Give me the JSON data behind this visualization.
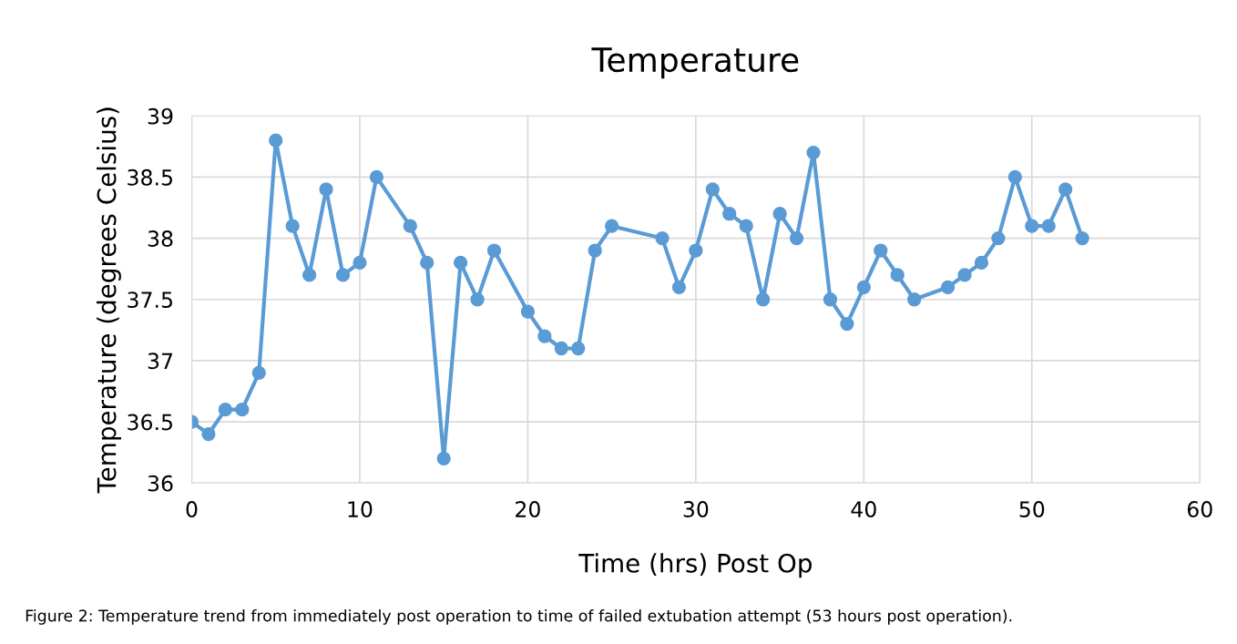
{
  "chart_data": {
    "type": "line",
    "title": "Temperature",
    "xlabel": "Time (hrs) Post Op",
    "ylabel": "Temperature (degrees Celsius)",
    "x": [
      0,
      1,
      2,
      3,
      4,
      5,
      6,
      7,
      8,
      9,
      10,
      11,
      13,
      14,
      15,
      16,
      17,
      18,
      20,
      21,
      22,
      23,
      24,
      25,
      28,
      29,
      30,
      31,
      32,
      33,
      34,
      35,
      36,
      37,
      38,
      39,
      40,
      41,
      42,
      43,
      45,
      46,
      47,
      48,
      49,
      50,
      51,
      52,
      53
    ],
    "series": [
      {
        "color": "#5b9bd5",
        "values": [
          36.5,
          36.4,
          36.6,
          36.6,
          36.9,
          38.8,
          38.1,
          37.7,
          38.4,
          37.7,
          37.8,
          38.5,
          38.1,
          37.8,
          36.2,
          37.8,
          37.5,
          37.9,
          37.4,
          37.2,
          37.1,
          37.1,
          37.9,
          38.1,
          38.0,
          37.6,
          37.9,
          38.4,
          38.2,
          38.1,
          37.5,
          38.2,
          38.0,
          38.7,
          37.5,
          37.3,
          37.6,
          37.9,
          37.7,
          37.5,
          37.6,
          37.7,
          37.8,
          38.0,
          38.5,
          38.1,
          38.1,
          38.4,
          38.0
        ]
      }
    ],
    "xlim": [
      0,
      60
    ],
    "xticks": [
      0,
      10,
      20,
      30,
      40,
      50,
      60
    ],
    "ylim": [
      36,
      39
    ],
    "yticks": [
      36,
      36.5,
      37,
      37.5,
      38,
      38.5,
      39
    ],
    "grid": true,
    "marker": "circle",
    "line_style": "solid",
    "annotations": [
      "Figure 2: Temperature trend from immediately post operation to time of failed extubation attempt (53 hours post operation)."
    ]
  }
}
